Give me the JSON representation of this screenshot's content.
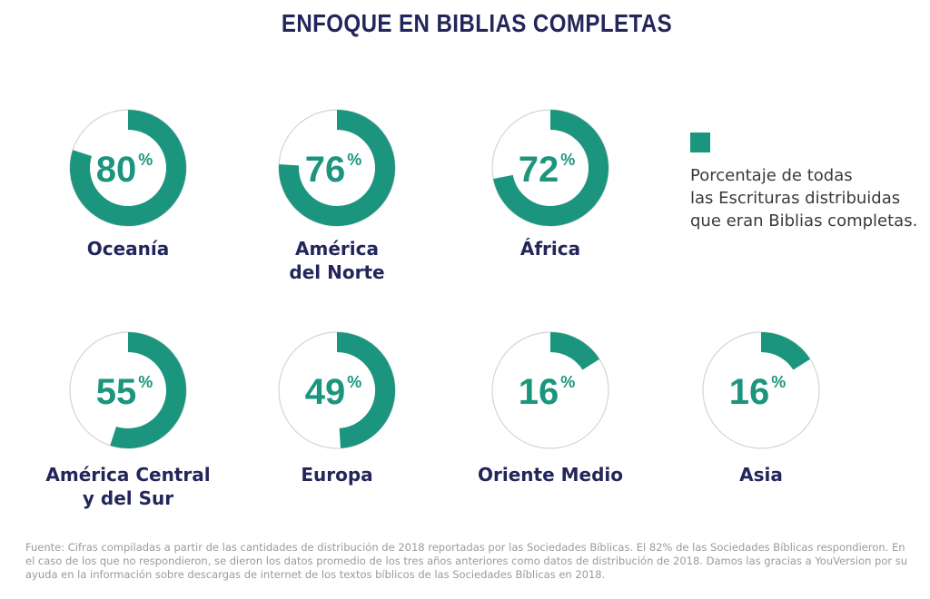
{
  "title": "ENFOQUE EN BIBLIAS COMPLETAS",
  "colors": {
    "accent": "#1c957e",
    "ring": "#d4d4d4",
    "title": "#23265a"
  },
  "legend": {
    "text": "Porcentaje de todas\nlas Escrituras distribuidas\nque eran Biblias completas."
  },
  "source": "Fuente: Cifras compiladas a partir de las cantidades de distribución de 2018 reportadas por las Sociedades Bíblicas. El 82% de las Sociedades Bíblicas respondieron. En el caso de los que no respondieron, se dieron los datos promedio de los tres años anteriores como datos de distribución de 2018. Damos las gracias a YouVersion por su ayuda en la información sobre descargas de internet de los textos bíblicos de las Sociedades Bíblicas en 2018.",
  "chart_data": {
    "type": "pie",
    "title": "ENFOQUE EN BIBLIAS COMPLETAS",
    "unit": "%",
    "legend": "Porcentaje de todas las Escrituras distribuidas que eran Biblias completas.",
    "categories": [
      "Oceanía",
      "América\ndel Norte",
      "África",
      "América Central\ny del Sur",
      "Europa",
      "Oriente Medio",
      "Asia"
    ],
    "values": [
      80,
      76,
      72,
      55,
      49,
      16,
      16
    ]
  }
}
